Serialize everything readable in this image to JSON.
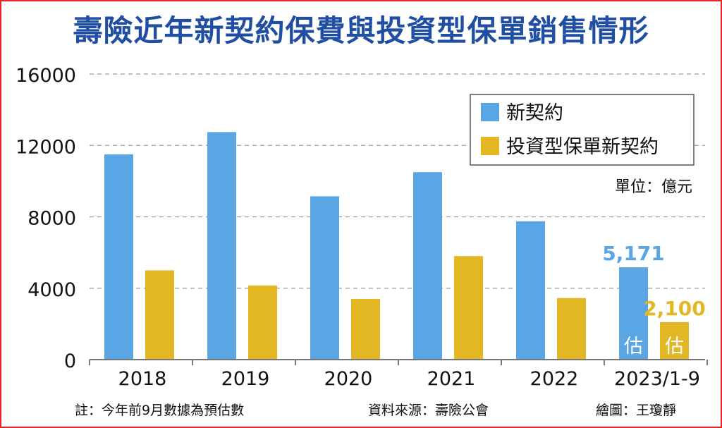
{
  "title": "壽險近年新契約保費與投資型保單銷售情形",
  "chart_data": {
    "type": "bar",
    "categories": [
      "2018",
      "2019",
      "2020",
      "2021",
      "2022",
      "2023/1-9"
    ],
    "series": [
      {
        "name": "新契約",
        "color": "#5aa5e3",
        "values": [
          11500,
          12750,
          9150,
          10500,
          7750,
          5171
        ]
      },
      {
        "name": "投資型保單新契約",
        "color": "#e3b624",
        "values": [
          5000,
          4150,
          3400,
          5800,
          3450,
          2100
        ]
      }
    ],
    "ylim": [
      0,
      16000
    ],
    "yticks": [
      "0",
      "4000",
      "8000",
      "12000",
      "16000"
    ],
    "grid": true,
    "legend_position": "top-right",
    "unit": "單位：億元",
    "data_labels": [
      {
        "series": 0,
        "index": 5,
        "text": "5,171"
      },
      {
        "series": 1,
        "index": 5,
        "text": "2,100"
      }
    ],
    "estimate_label": "估",
    "estimate_index": 5
  },
  "footer": {
    "note": "註：今年前9月數據為預估數",
    "source": "資料來源：壽險公會",
    "credit": "繪圖：王瓊靜"
  }
}
